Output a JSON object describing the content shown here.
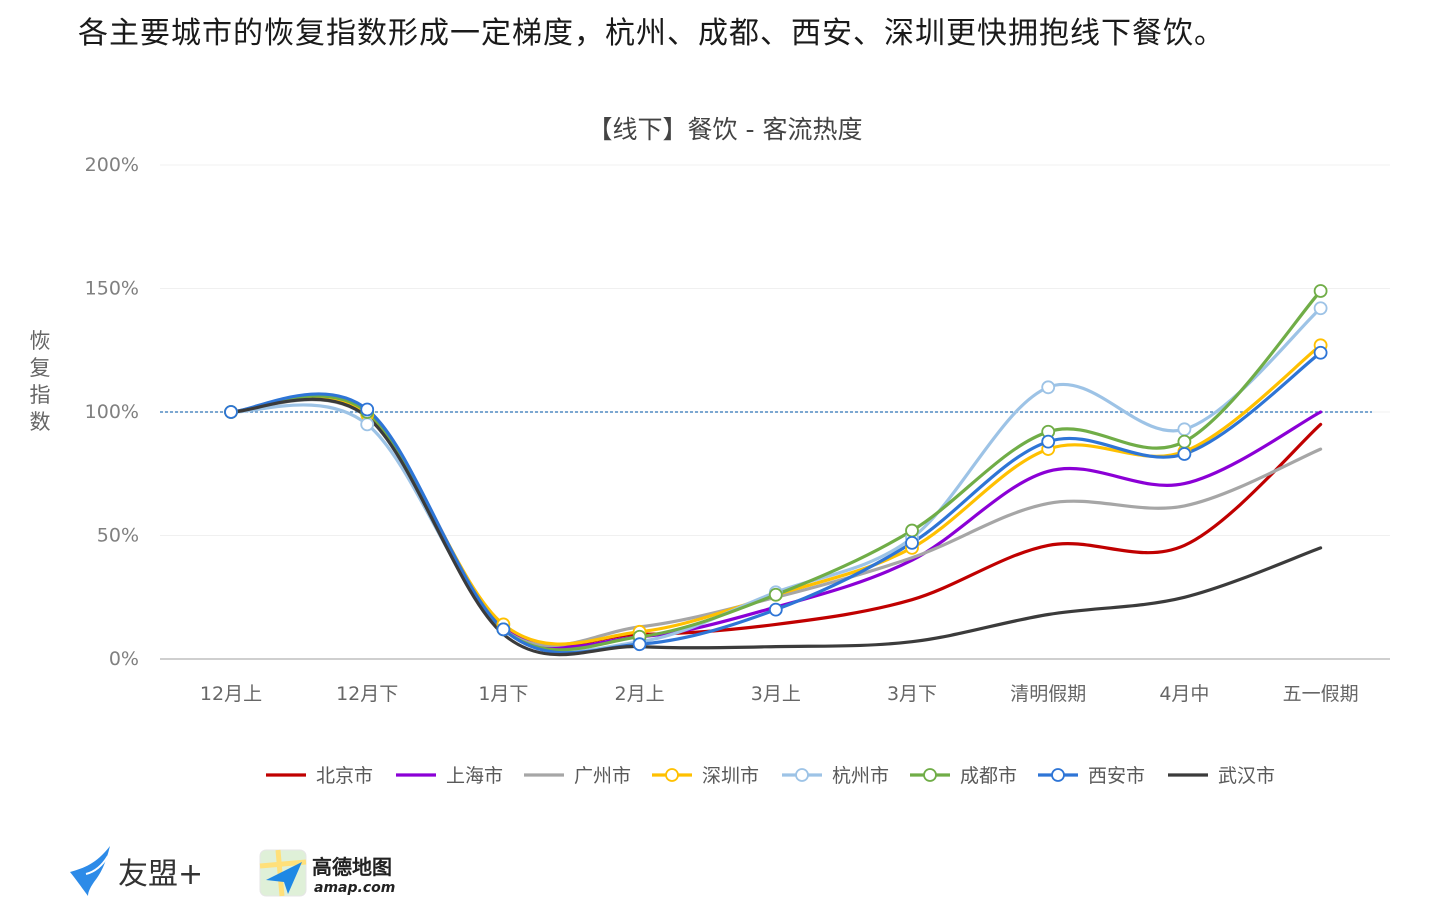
{
  "page": {
    "headline": "各主要城市的恢复指数形成一定梯度，杭州、成都、西安、深圳更快拥抱线下餐饮。"
  },
  "chart_data": {
    "type": "line",
    "title": "【线下】餐饮 - 客流热度",
    "ylabel": "恢复指数",
    "xlabel": "",
    "ylim": [
      0,
      200
    ],
    "yticks": [
      0,
      50,
      100,
      150,
      200
    ],
    "ytick_labels": [
      "0%",
      "50%",
      "100%",
      "150%",
      "200%"
    ],
    "reference_line": 100,
    "categories": [
      "12月上",
      "12月下",
      "1月下",
      "2月上",
      "3月上",
      "3月下",
      "清明假期",
      "4月中",
      "五一假期"
    ],
    "series": [
      {
        "name": "北京市",
        "color": "#c00000",
        "markers": false,
        "values": [
          100,
          100,
          13,
          10,
          14,
          24,
          46,
          46,
          95
        ]
      },
      {
        "name": "上海市",
        "color": "#8b00d6",
        "markers": false,
        "values": [
          100,
          99,
          13,
          9,
          21,
          40,
          76,
          71,
          100
        ]
      },
      {
        "name": "广州市",
        "color": "#a6a6a6",
        "markers": false,
        "values": [
          100,
          98,
          12,
          13,
          25,
          41,
          63,
          62,
          85
        ]
      },
      {
        "name": "深圳市",
        "color": "#ffc000",
        "markers": true,
        "values": [
          100,
          99,
          14,
          11,
          26,
          45,
          85,
          84,
          127
        ]
      },
      {
        "name": "杭州市",
        "color": "#9dc3e6",
        "markers": true,
        "values": [
          100,
          95,
          12,
          7,
          27,
          49,
          110,
          93,
          142
        ]
      },
      {
        "name": "成都市",
        "color": "#70ad47",
        "markers": true,
        "values": [
          100,
          100,
          12,
          9,
          26,
          52,
          92,
          88,
          149
        ]
      },
      {
        "name": "西安市",
        "color": "#2e75d6",
        "markers": true,
        "values": [
          100,
          101,
          12,
          6,
          20,
          47,
          88,
          83,
          124
        ]
      },
      {
        "name": "武汉市",
        "color": "#3b3b3b",
        "markers": false,
        "values": [
          100,
          98,
          10,
          5,
          5,
          7,
          18,
          25,
          45
        ]
      }
    ]
  },
  "branding": {
    "umeng": "友盟+",
    "amap_name": "高德地图",
    "amap_url": "amap.com"
  }
}
